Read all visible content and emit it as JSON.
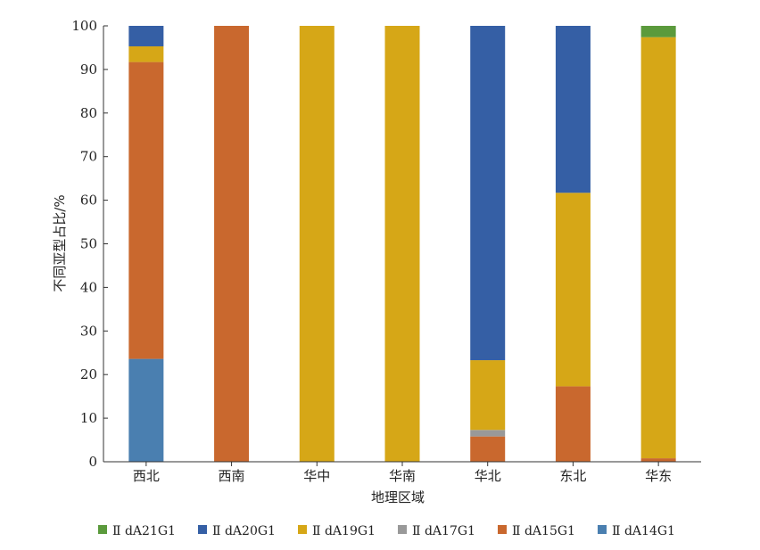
{
  "chart_data": {
    "type": "bar",
    "stacked": true,
    "xlabel": "地理区域",
    "ylabel": "不同亚型占比/%",
    "ylim": [
      0,
      100
    ],
    "yticks": [
      0,
      10,
      20,
      30,
      40,
      50,
      60,
      70,
      80,
      90,
      100
    ],
    "categories": [
      "西北",
      "西南",
      "华中",
      "华南",
      "华北",
      "东北",
      "华东"
    ],
    "legend_position": "bottom",
    "grid": false,
    "series": [
      {
        "name": "Ⅱ dA14G1",
        "color": "#4a7fb0",
        "values": [
          23.6,
          0,
          0,
          0,
          0,
          0,
          0
        ]
      },
      {
        "name": "Ⅱ dA15G1",
        "color": "#c9682e",
        "values": [
          68.1,
          100,
          0,
          0,
          5.8,
          17.3,
          0.8
        ]
      },
      {
        "name": "Ⅱ dA17G1",
        "color": "#999999",
        "values": [
          0,
          0,
          0,
          0,
          1.5,
          0,
          0
        ]
      },
      {
        "name": "Ⅱ dA19G1",
        "color": "#d6a717",
        "values": [
          3.6,
          0,
          100,
          100,
          16.0,
          44.4,
          96.6
        ]
      },
      {
        "name": "Ⅱ dA20G1",
        "color": "#355fa5",
        "values": [
          4.7,
          0,
          0,
          0,
          76.7,
          38.3,
          0
        ]
      },
      {
        "name": "Ⅱ dA21G1",
        "color": "#5b9a3c",
        "values": [
          0,
          0,
          0,
          0,
          0,
          0,
          2.6
        ]
      }
    ],
    "legend_order": [
      "Ⅱ dA21G1",
      "Ⅱ dA20G1",
      "Ⅱ dA19G1",
      "Ⅱ dA17G1",
      "Ⅱ dA15G1",
      "Ⅱ dA14G1"
    ]
  }
}
